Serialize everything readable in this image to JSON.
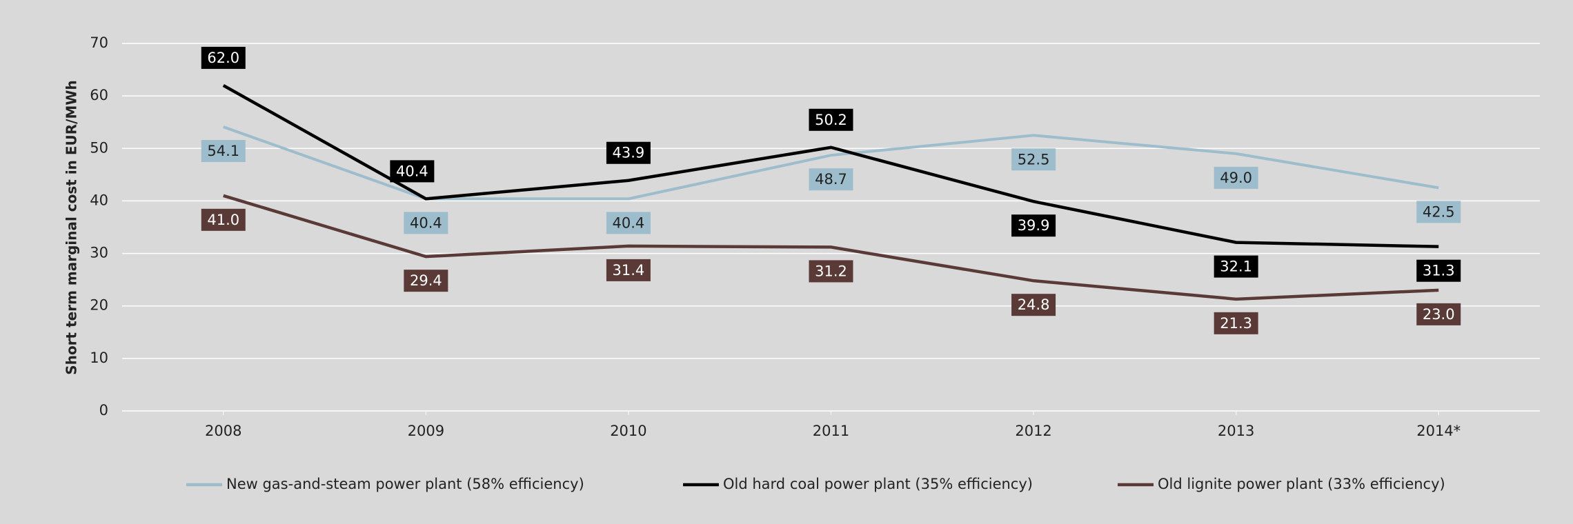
{
  "chart_data": {
    "type": "line",
    "y_label": "Short term marginal cost in EUR/MWh",
    "categories": [
      "2008",
      "2009",
      "2010",
      "2011",
      "2012",
      "2013",
      "2014*"
    ],
    "series": [
      {
        "name": "New gas-and-steam power plant (58% efficiency)",
        "color": "#9dbdcc",
        "values": [
          54.1,
          40.4,
          40.4,
          48.7,
          52.5,
          49.0,
          42.5
        ],
        "value_labels": [
          "54.1",
          "40.4",
          "40.4",
          "48.7",
          "52.5",
          "49.0",
          "42.5"
        ]
      },
      {
        "name": "Old hard coal power plant (35% efficiency)",
        "color": "#000000",
        "values": [
          62.0,
          40.4,
          43.9,
          50.2,
          39.9,
          32.1,
          31.3
        ],
        "value_labels": [
          "62.0",
          "40.4",
          "43.9",
          "50.2",
          "39.9",
          "32.1",
          "31.3"
        ]
      },
      {
        "name": "Old lignite power plant (33% efficiency)",
        "color": "#5a3a36",
        "values": [
          41.0,
          29.4,
          31.4,
          31.2,
          24.8,
          21.3,
          23.0
        ],
        "value_labels": [
          "41.0",
          "29.4",
          "31.4",
          "31.2",
          "24.8",
          "21.3",
          "23.0"
        ]
      }
    ],
    "ylim": [
      0,
      70
    ],
    "yticks": [
      0,
      10,
      20,
      30,
      40,
      50,
      60,
      70
    ],
    "grid": true,
    "legend": "bottom"
  }
}
